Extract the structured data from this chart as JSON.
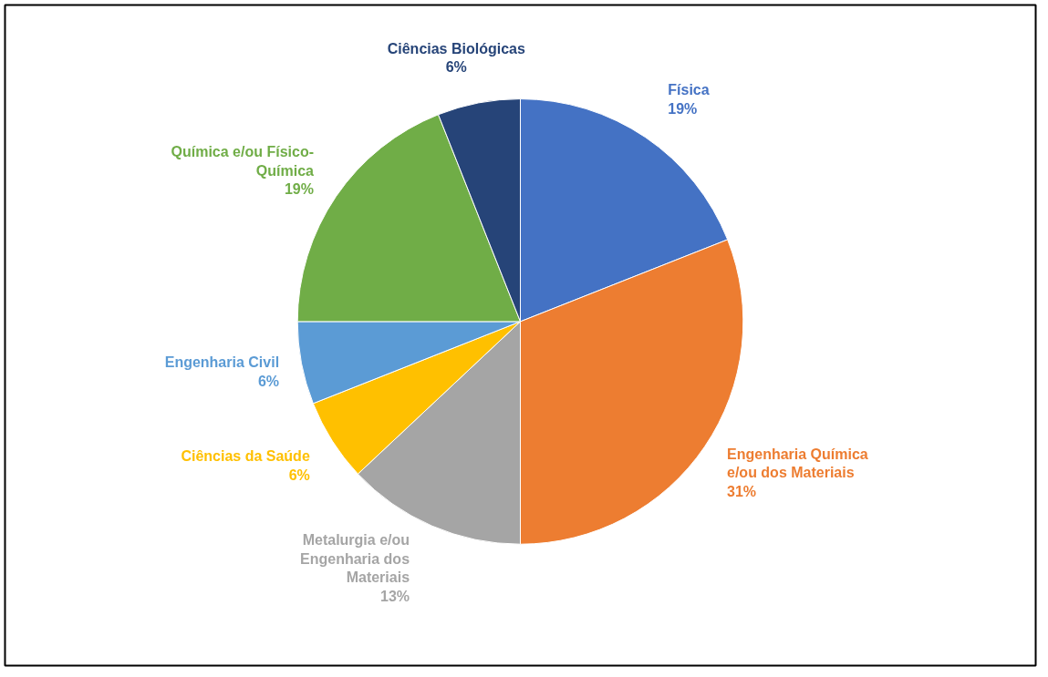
{
  "chart_data": {
    "type": "pie",
    "categories": [
      "Física",
      "Engenharia Química e/ou dos Materiais",
      "Metalurgia e/ou Engenharia dos Materiais",
      "Ciências da Saúde",
      "Engenharia Civil",
      "Química e/ou Físico-Química",
      "Ciências Biológicas"
    ],
    "values": [
      19,
      31,
      13,
      6,
      6,
      19,
      6
    ],
    "colors": [
      "#4472c4",
      "#ed7d31",
      "#a5a5a5",
      "#ffc000",
      "#5b9bd5",
      "#70ad47",
      "#264478"
    ],
    "value_labels": [
      "19%",
      "31%",
      "13%",
      "6%",
      "6%",
      "19%",
      "6%"
    ]
  }
}
